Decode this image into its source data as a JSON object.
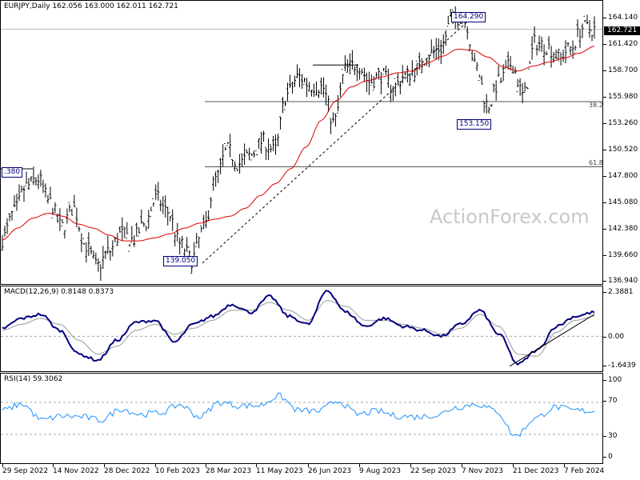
{
  "main_title": "EURJPY,Daily  162.056 163.000 162.011 162.721",
  "macd_title": "MACD(12,26,9) 0.8148 0.8373",
  "rsi_title": "RSI(14) 59.3062",
  "watermark": "ActionForex.com",
  "current_price": "162.721",
  "price_ticks": [
    "164.140",
    "161.420",
    "158.700",
    "155.980",
    "153.260",
    "150.520",
    "147.800",
    "145.080",
    "142.380",
    "139.660",
    "136.940"
  ],
  "macd_ticks": [
    "2.3881",
    "0.00",
    "-1.6439"
  ],
  "rsi_ticks": [
    "100",
    "70",
    "30",
    "0"
  ],
  "x_ticks": [
    "29 Sep 2022",
    "14 Nov 2022",
    "28 Dec 2022",
    "10 Feb 2023",
    "28 Mar 2023",
    "11 May 2023",
    "26 Jun 2023",
    "9 Aug 2023",
    "22 Sep 2023",
    "7 Nov 2023",
    "21 Dec 2023",
    "7 Feb 2024"
  ],
  "annotations": {
    "high_label": "164.290",
    "low2_label": "153.150",
    "low1_label": "139.050",
    "left_label": ".380",
    "fib382": "38.2",
    "fib618": "61.8"
  },
  "colors": {
    "price": "#000000",
    "ma": "#dd0000",
    "macd_main": "#000080",
    "macd_signal": "#999999",
    "rsi": "#1e90ff",
    "label": "#000080"
  },
  "chart_data": [
    {
      "type": "ohlc",
      "title": "EURJPY,Daily",
      "ylim": [
        136.94,
        165.5
      ],
      "series": [
        {
          "name": "EURJPY",
          "values": [
            141.5,
            144.2,
            146.8,
            147.6,
            145.2,
            142.7,
            144.6,
            140.9,
            138.7,
            140.2,
            142.0,
            141.4,
            143.0,
            145.6,
            144.2,
            141.0,
            139.4,
            142.5,
            147.5,
            150.5,
            149.1,
            150.0,
            151.4,
            150.4,
            156.1,
            157.9,
            157.1,
            156.9,
            153.2,
            158.7,
            159.2,
            157.4,
            158.1,
            156.8,
            158.0,
            158.7,
            160.2,
            160.8,
            163.8,
            164.1,
            158.8,
            155.0,
            157.5,
            159.2,
            156.0,
            161.4,
            161.0,
            160.0,
            160.8,
            162.9,
            162.7
          ]
        },
        {
          "name": "MA",
          "values": [
            141.4,
            142.6,
            143.6,
            144.1,
            143.8,
            143.0,
            142.6,
            141.9,
            141.3,
            141.3,
            141.6,
            142.0,
            142.6,
            143.1,
            143.5,
            143.8,
            144.6,
            145.9,
            147.1,
            148.6,
            150.8,
            153.5,
            155.5,
            156.9,
            157.5,
            157.9,
            158.3,
            158.5,
            159.3,
            160.0,
            160.7,
            160.6,
            159.9,
            158.9,
            158.5,
            159.0,
            159.4,
            159.8,
            160.3,
            161.0
          ]
        }
      ],
      "annotations": [
        "164.290",
        "153.150",
        "139.050",
        "38.2",
        "61.8"
      ]
    },
    {
      "type": "line",
      "title": "MACD(12,26,9) 0.8148 0.8373",
      "ylim": [
        -1.6439,
        2.3881
      ],
      "series": [
        {
          "name": "MACD",
          "values": [
            0.4,
            0.9,
            1.1,
            0.3,
            -0.9,
            -1.2,
            -0.2,
            0.7,
            0.8,
            -0.3,
            0.6,
            1.0,
            1.6,
            1.2,
            2.0,
            1.0,
            0.6,
            2.3,
            1.2,
            0.5,
            0.9,
            0.5,
            0.3,
            0.0,
            0.6,
            1.3,
            0.1,
            -1.4,
            -0.7,
            0.5,
            1.0,
            1.2
          ]
        },
        {
          "name": "Signal",
          "values": [
            0.3,
            0.6,
            0.9,
            0.6,
            -0.2,
            -0.9,
            -0.5,
            0.3,
            0.6,
            0.1,
            0.4,
            0.8,
            1.3,
            1.3,
            1.7,
            1.3,
            0.8,
            1.8,
            1.5,
            0.8,
            0.8,
            0.6,
            0.4,
            0.1,
            0.4,
            1.1,
            0.5,
            -0.9,
            -1.0,
            0.2,
            0.8,
            1.0
          ]
        }
      ]
    },
    {
      "type": "line",
      "title": "RSI(14) 59.3062",
      "ylim": [
        0,
        100
      ],
      "series": [
        {
          "name": "RSI",
          "values": [
            60,
            68,
            48,
            53,
            52,
            48,
            62,
            55,
            57,
            67,
            52,
            70,
            66,
            66,
            78,
            60,
            59,
            72,
            55,
            59,
            53,
            52,
            54,
            64,
            68,
            60,
            28,
            50,
            64,
            60,
            59
          ]
        }
      ]
    }
  ]
}
